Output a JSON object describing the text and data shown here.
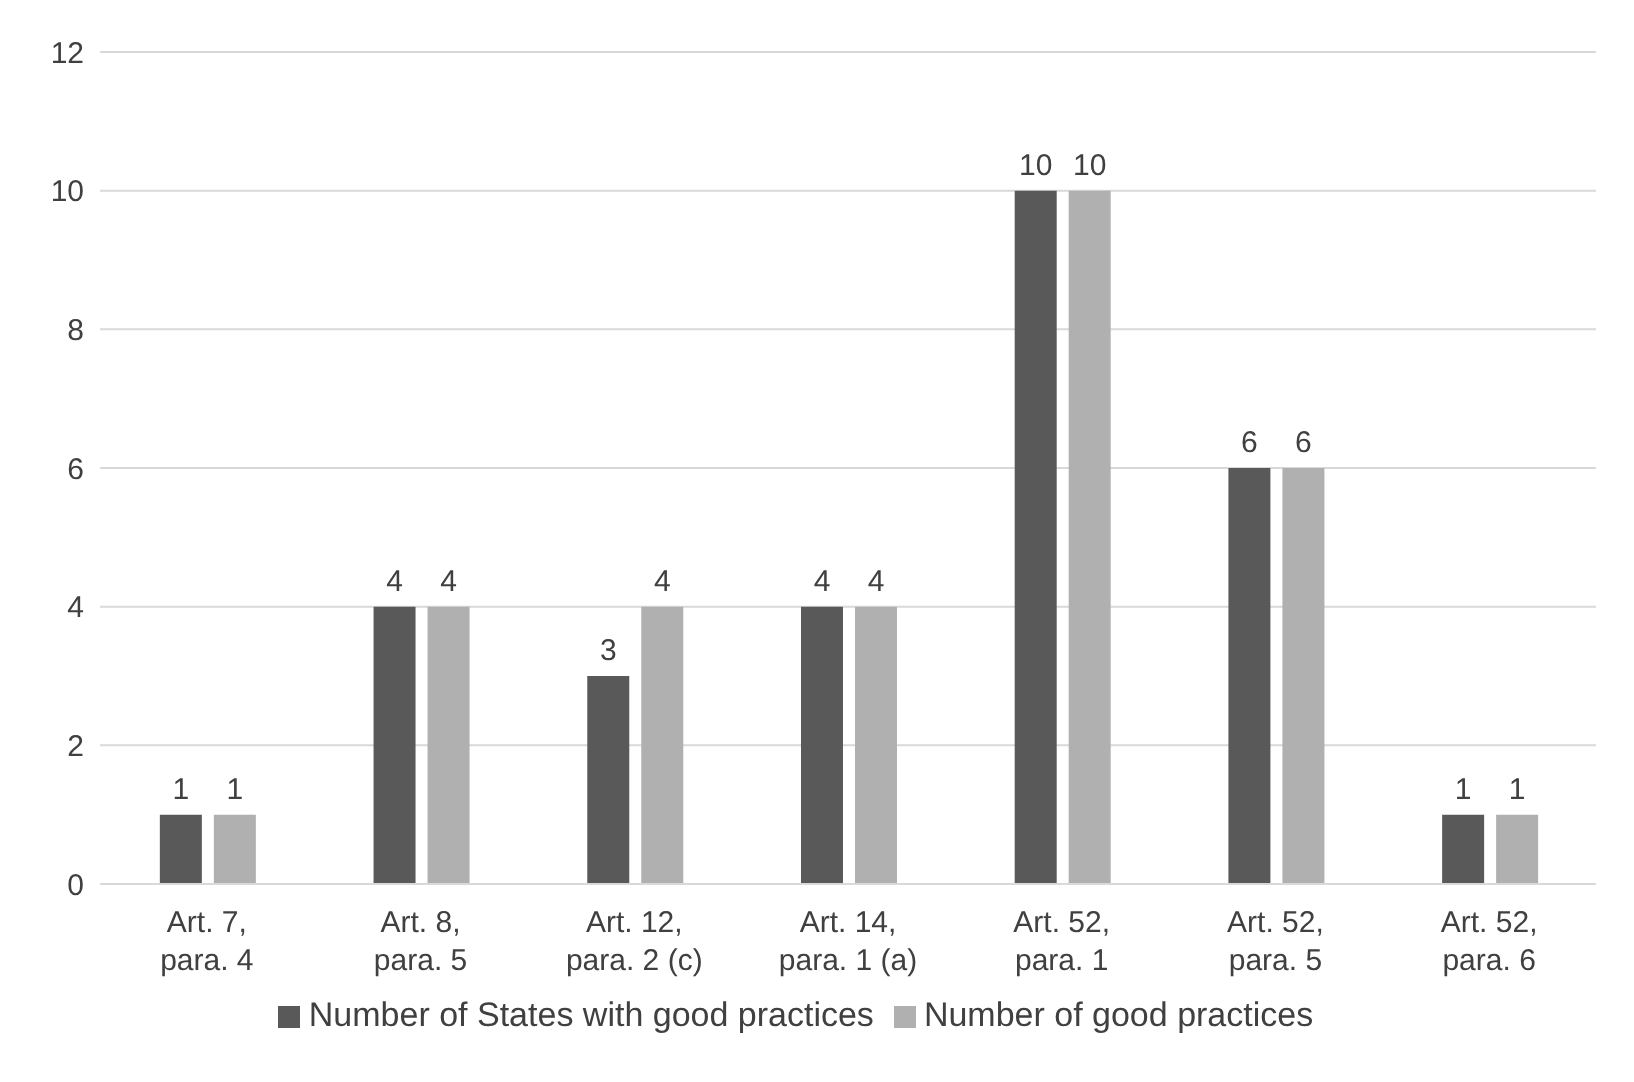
{
  "chart_data": {
    "type": "bar",
    "categories": [
      "Art. 7, para. 4",
      "Art. 8, para. 5",
      "Art. 12, para. 2 (c)",
      "Art. 14, para. 1 (a)",
      "Art. 52, para. 1",
      "Art. 52, para. 5",
      "Art. 52, para. 6"
    ],
    "series": [
      {
        "name": "Number of States with good practices",
        "color": "#595959",
        "values": [
          1,
          4,
          3,
          4,
          10,
          6,
          1
        ]
      },
      {
        "name": "Number of good practices",
        "color": "#b0b0b0",
        "values": [
          1,
          4,
          4,
          4,
          10,
          6,
          1
        ]
      }
    ],
    "ylim": [
      0,
      12
    ],
    "yticks": [
      0,
      2,
      4,
      6,
      8,
      10,
      12
    ],
    "grid": "y",
    "legend": "bottom",
    "data_labels": true
  }
}
